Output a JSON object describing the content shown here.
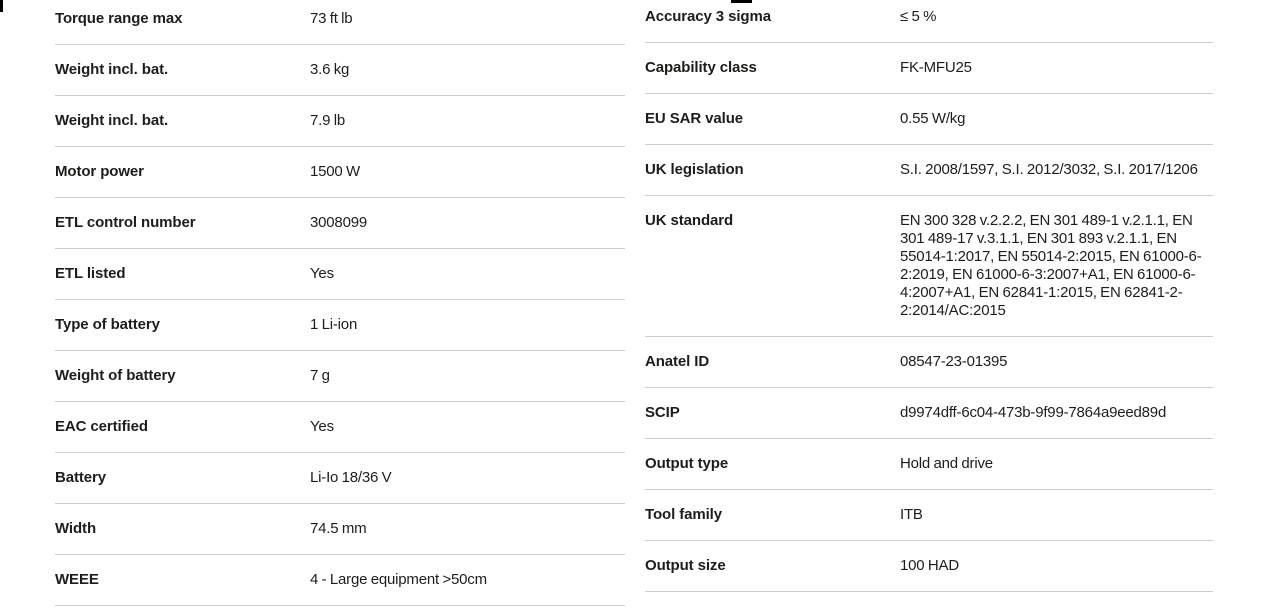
{
  "colors": {
    "text": "#1d1d1b",
    "divider": "#cccccc",
    "background": "#ffffff",
    "artifact": "#000000"
  },
  "spec_tables": {
    "left": {
      "rows": [
        {
          "label": "Torque range max",
          "value": "73 ft lb"
        },
        {
          "label": "Weight incl. bat.",
          "value": "3.6 kg"
        },
        {
          "label": "Weight incl. bat.",
          "value": "7.9 lb"
        },
        {
          "label": "Motor power",
          "value": "1500 W"
        },
        {
          "label": "ETL control number",
          "value": "3008099"
        },
        {
          "label": "ETL listed",
          "value": "Yes"
        },
        {
          "label": "Type of battery",
          "value": "1 Li-ion"
        },
        {
          "label": "Weight of battery",
          "value": "7 g"
        },
        {
          "label": "EAC certified",
          "value": "Yes"
        },
        {
          "label": "Battery",
          "value": "Li-Io 18/36 V"
        },
        {
          "label": "Width",
          "value": "74.5 mm"
        },
        {
          "label": "WEEE",
          "value": "4 - Large equipment >50cm"
        }
      ]
    },
    "right": {
      "rows": [
        {
          "label": "Accuracy 3 sigma",
          "value": "≤ 5 %"
        },
        {
          "label": "Capability class",
          "value": "FK-MFU25"
        },
        {
          "label": "EU SAR value",
          "value": "0.55 W/kg"
        },
        {
          "label": "UK legislation",
          "value": "S.I. 2008/1597, S.I. 2012/3032, S.I. 2017/1206"
        },
        {
          "label": "UK standard",
          "value": "EN 300 328 v.2.2.2, EN 301 489-1 v.2.1.1, EN 301 489-17 v.3.1.1, EN 301 893 v.2.1.1, EN 55014-1:2017, EN 55014-2:2015, EN 61000-6-2:2019, EN 61000-6-3:2007+A1, EN 61000-6-4:2007+A1, EN 62841-1:2015, EN 62841-2-2:2014/AC:2015"
        },
        {
          "label": "Anatel ID",
          "value": "08547-23-01395"
        },
        {
          "label": "SCIP",
          "value": "d9974dff-6c04-473b-9f99-7864a9eed89d"
        },
        {
          "label": "Output type",
          "value": "Hold and drive"
        },
        {
          "label": "Tool family",
          "value": "ITB"
        },
        {
          "label": "Output size",
          "value": "100 HAD"
        }
      ]
    }
  }
}
